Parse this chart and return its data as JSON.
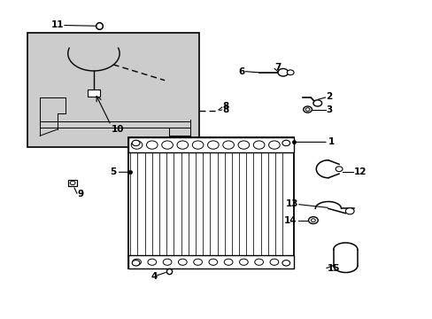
{
  "bg_color": "#ffffff",
  "line_color": "#000000",
  "gray_fill": "#cccccc",
  "figsize": [
    4.89,
    3.6
  ],
  "dpi": 100
}
